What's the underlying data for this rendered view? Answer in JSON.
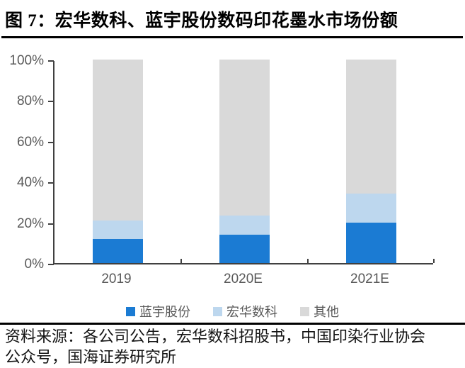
{
  "figure": {
    "title": "图 7：宏华数科、蓝宇股份数码印花墨水市场份额",
    "source_note": {
      "lines": [
        "资料来源：各公司公告，宏华数科招股书，中国印染行业协会",
        "公众号，国海证券研究所"
      ]
    }
  },
  "colors": {
    "lanyu_blue": "#1B7BD3",
    "honghua_light_blue": "#BDD7EE",
    "other_gray": "#D9D9D9",
    "axis_line": "#404040",
    "axis_text": "#595959",
    "rule_black": "#000000",
    "background": "#FFFFFF"
  },
  "chart_data": {
    "type": "bar",
    "stacked": true,
    "title": "宏华数科、蓝宇股份数码印花墨水市场份额",
    "categories": [
      "2019",
      "2020E",
      "2021E"
    ],
    "series": [
      {
        "name": "蓝宇股份",
        "color": "#1B7BD3",
        "values": [
          12,
          14,
          20
        ]
      },
      {
        "name": "宏华数科",
        "color": "#BDD7EE",
        "values": [
          9,
          9.5,
          14
        ]
      },
      {
        "name": "其他",
        "color": "#D9D9D9",
        "values": [
          79,
          76.5,
          66
        ]
      }
    ],
    "y_axis": {
      "min": 0,
      "max": 100,
      "unit": "%",
      "tick_values": [
        0,
        20,
        40,
        60,
        80,
        100
      ],
      "tick_labels": [
        "0%",
        "20%",
        "40%",
        "60%",
        "80%",
        "100%"
      ]
    },
    "x_axis": {
      "label": ""
    },
    "legend": {
      "position": "bottom",
      "entries": [
        "蓝宇股份",
        "宏华数科",
        "其他"
      ]
    },
    "grid": false
  }
}
